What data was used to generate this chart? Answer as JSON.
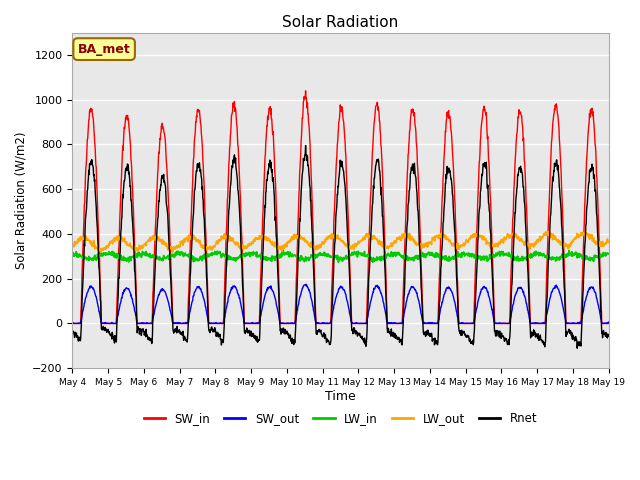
{
  "title": "Solar Radiation",
  "xlabel": "Time",
  "ylabel": "Solar Radiation (W/m2)",
  "ylim": [
    -200,
    1300
  ],
  "yticks": [
    -200,
    0,
    200,
    400,
    600,
    800,
    1000,
    1200
  ],
  "start_day": 4,
  "end_day": 19,
  "n_days": 15,
  "dt_hours": 0.25,
  "sw_peaks": [
    960,
    930,
    880,
    960,
    980,
    960,
    1020,
    960,
    980,
    960,
    940,
    960,
    950,
    980,
    960
  ],
  "series_colors": {
    "SW_in": "#ff0000",
    "SW_out": "#0000ff",
    "LW_in": "#00cc00",
    "LW_out": "#ffa500",
    "Rnet": "#000000"
  },
  "series_labels": [
    "SW_in",
    "SW_out",
    "LW_in",
    "LW_out",
    "Rnet"
  ],
  "annotation_text": "BA_met",
  "annotation_bg": "#ffff99",
  "annotation_border": "#996600",
  "bg_color": "#e8e8e8",
  "figsize": [
    6.4,
    4.8
  ],
  "dpi": 100
}
